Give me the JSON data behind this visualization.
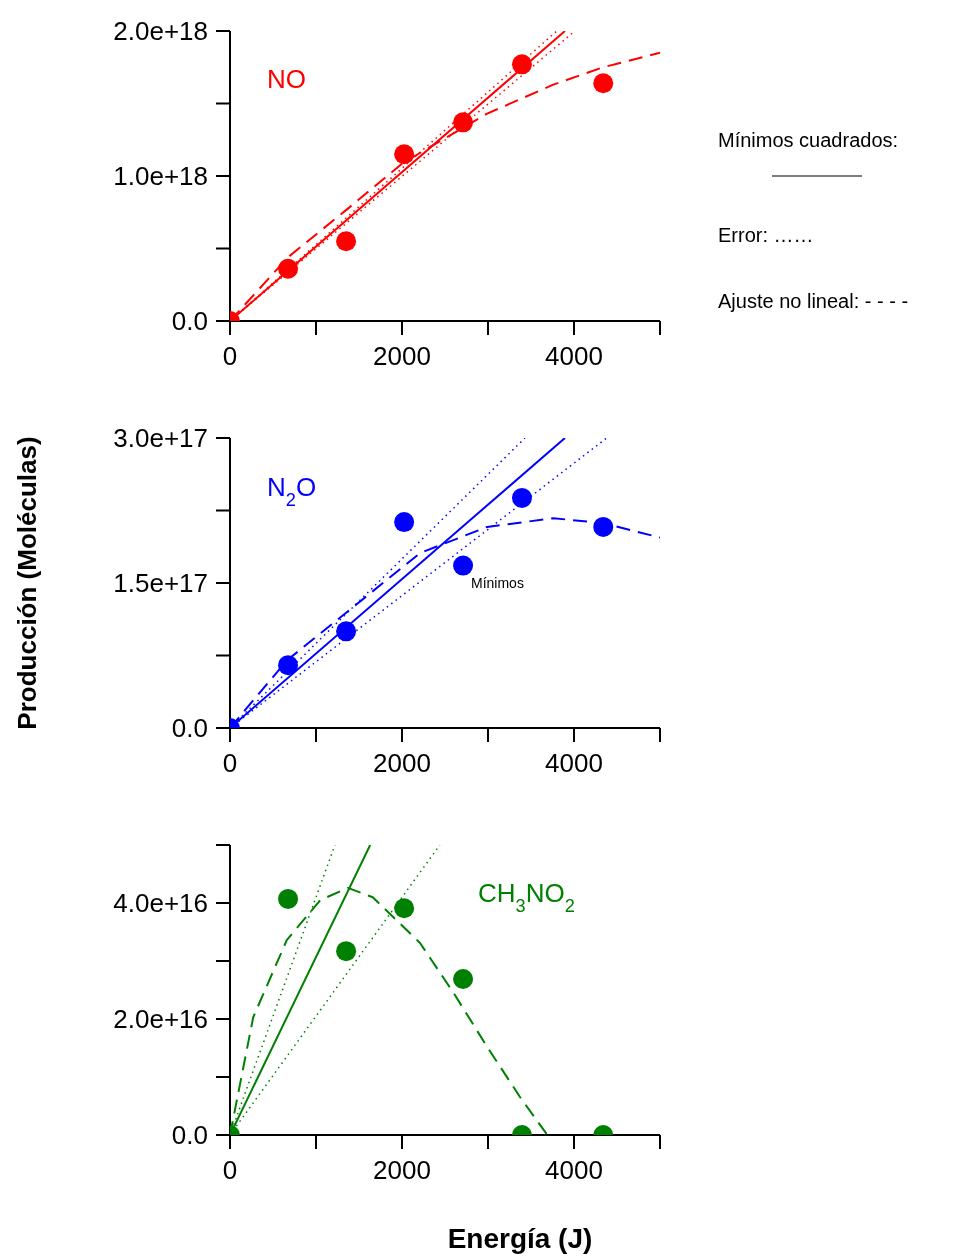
{
  "chart_data": [
    {
      "type": "scatter",
      "xlim": [
        0,
        5000
      ],
      "xticks": [
        0,
        {
          "value": 1000,
          "label": null
        },
        2000,
        {
          "value": 3000,
          "label": null
        },
        4000,
        {
          "value": 5000,
          "label": null
        }
      ],
      "ylim": [
        0,
        2e+18
      ],
      "yticks": [
        {
          "value": 0,
          "label": "0.0"
        },
        {
          "value": 5e+17,
          "label": null
        },
        {
          "value": 1e+18,
          "label": "1.0e+18"
        },
        {
          "value": 1.5e+18,
          "label": null
        },
        {
          "value": 2e+18,
          "label": "2.0e+18"
        }
      ],
      "x": [
        0,
        675,
        1350,
        2025,
        2710,
        3395,
        4340
      ],
      "annotations": [
        "Mínimos cuadrados:",
        "Error: ……",
        "Ajuste no lineal: - - - -"
      ],
      "series": [
        {
          "name": "NO",
          "color": "#ff0000",
          "marker": "circle",
          "values": [
            0,
            3.6e+17,
            5.5e+17,
            1.15e+18,
            1.37e+18,
            1.77e+18,
            1.64e+18
          ]
        },
        {
          "type": "line",
          "color": "#ff0000",
          "line_style": "solid",
          "x": [
            0,
            3895
          ],
          "values": [
            0,
            2e+18
          ]
        },
        {
          "type": "line",
          "color": "#ff0000",
          "line_style": "dotted",
          "x": [
            0,
            3800
          ],
          "values": [
            0,
            2e+18
          ]
        },
        {
          "type": "line",
          "color": "#ff0000",
          "line_style": "dotted",
          "x": [
            0,
            4010
          ],
          "values": [
            0,
            2e+18
          ]
        },
        {
          "type": "line",
          "color": "#ff0000",
          "line_style": "dashed",
          "x": [
            0,
            675,
            1360,
            2010,
            2990,
            3760,
            4340,
            5000
          ],
          "values": [
            0,
            4.4e+17,
            7.7e+17,
            1.09e+18,
            1.43e+18,
            1.63e+18,
            1.75e+18,
            1.85e+18
          ]
        }
      ]
    },
    {
      "type": "scatter",
      "xlim": [
        0,
        5000
      ],
      "xticks": [
        0,
        {
          "value": 1000,
          "label": null
        },
        2000,
        {
          "value": 3000,
          "label": null
        },
        4000,
        {
          "value": 5000,
          "label": null
        }
      ],
      "ylim": [
        0,
        3e+17
      ],
      "yticks": [
        {
          "value": 0,
          "label": "0.0"
        },
        {
          "value": 7.5e+16,
          "label": null
        },
        {
          "value": 1.5e+17,
          "label": "1.5e+17"
        },
        {
          "value": 2.25e+17,
          "label": null
        },
        {
          "value": 3e+17,
          "label": "3.0e+17"
        }
      ],
      "ylabel": "Producción (Moléculas)",
      "x": [
        0,
        675,
        1350,
        2025,
        2710,
        3395,
        4340
      ],
      "annotations": [
        "Mínimos"
      ],
      "series": [
        {
          "name": "N$_{2}$O",
          "color": "#0000ff",
          "marker": "circle",
          "values": [
            0,
            6.5e+16,
            1e+17,
            2.13e+17,
            1.68e+17,
            2.38e+17,
            2.08e+17
          ]
        },
        {
          "type": "line",
          "color": "#0000ff",
          "line_style": "solid",
          "x": [
            0,
            3895
          ],
          "values": [
            0,
            3e+17
          ]
        },
        {
          "type": "line",
          "color": "#0000ff",
          "line_style": "dotted",
          "x": [
            0,
            3430
          ],
          "values": [
            0,
            3e+17
          ]
        },
        {
          "type": "line",
          "color": "#0000ff",
          "line_style": "dotted",
          "x": [
            0,
            4380
          ],
          "values": [
            0,
            3e+17
          ]
        },
        {
          "type": "line",
          "color": "#0000ff",
          "line_style": "dashed",
          "x": [
            0,
            663,
            1430,
            2210,
            2990,
            3760,
            4340,
            5000
          ],
          "values": [
            0,
            7e+16,
            1.25e+17,
            1.81e+17,
            2.08e+17,
            2.17e+17,
            2.12e+17,
            1.97e+17
          ]
        }
      ]
    },
    {
      "type": "scatter",
      "xlim": [
        0,
        5000
      ],
      "xticks": [
        0,
        {
          "value": 1000,
          "label": null
        },
        2000,
        {
          "value": 3000,
          "label": null
        },
        4000,
        {
          "value": 5000,
          "label": null
        }
      ],
      "ylim": [
        0,
        5e+16
      ],
      "yticks": [
        {
          "value": 0,
          "label": "0.0"
        },
        {
          "value": 1e+16,
          "label": null
        },
        {
          "value": 2e+16,
          "label": "2.0e+16"
        },
        {
          "value": 3e+16,
          "label": null
        },
        {
          "value": 4e+16,
          "label": "4.0e+16"
        },
        {
          "value": 5e+16,
          "label": null
        }
      ],
      "xlabel": "Energía (J)",
      "x": [
        0,
        675,
        1350,
        2025,
        2710,
        3395,
        4340
      ],
      "series": [
        {
          "name": "CH$_{3}$NO$_{2}$",
          "color": "#008000",
          "marker": "circle",
          "values": [
            0,
            4.07e+16,
            3.17e+16,
            3.91e+16,
            2.69e+16,
            0,
            0
          ]
        },
        {
          "type": "line",
          "color": "#008000",
          "line_style": "solid",
          "x": [
            0,
            1630
          ],
          "values": [
            0,
            5e+16
          ]
        },
        {
          "type": "line",
          "color": "#008000",
          "line_style": "dotted",
          "x": [
            0,
            1220
          ],
          "values": [
            0,
            5e+16
          ]
        },
        {
          "type": "line",
          "color": "#008000",
          "line_style": "dotted",
          "x": [
            0,
            2440
          ],
          "values": [
            0,
            5e+16
          ]
        },
        {
          "type": "line",
          "color": "#008000",
          "line_style": "dashed",
          "x": [
            0,
            270,
            660,
            1050,
            1370,
            1660,
            2210,
            2600,
            2990,
            3370,
            3690
          ],
          "values": [
            0,
            2.03e+16,
            3.36e+16,
            4.05e+16,
            4.26e+16,
            4.1e+16,
            3.31e+16,
            2.45e+16,
            1.52e+16,
            6600000000000000.0,
            0
          ]
        }
      ]
    }
  ]
}
